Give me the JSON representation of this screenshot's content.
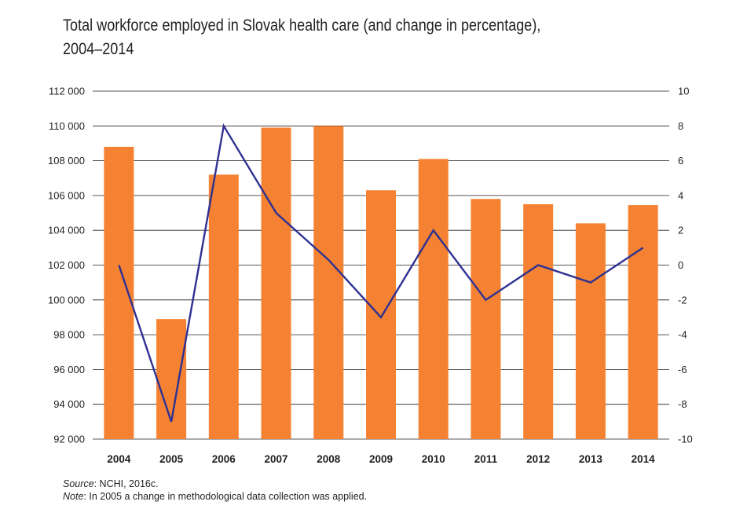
{
  "chart_data": {
    "type": "bar",
    "title_line1": "Total workforce employed in Slovak health care (and change in percentage),",
    "title_line2": "2004–2014",
    "categories": [
      "2004",
      "2005",
      "2006",
      "2007",
      "2008",
      "2009",
      "2010",
      "2011",
      "2012",
      "2013",
      "2014"
    ],
    "series": [
      {
        "type": "bar",
        "axis": "left",
        "color": "#f58232",
        "values": [
          108800,
          98900,
          107200,
          109900,
          110000,
          106300,
          108100,
          105800,
          105500,
          104400,
          105450
        ]
      },
      {
        "type": "line",
        "axis": "right",
        "color": "#2e3192",
        "values": [
          0,
          -9,
          8,
          3,
          0.3,
          -3,
          2,
          -2,
          0,
          -1,
          1
        ]
      }
    ],
    "y_left": {
      "min": 92000,
      "max": 112000,
      "step": 2000,
      "ticks": [
        "92 000",
        "94 000",
        "96 000",
        "98 000",
        "100 000",
        "102 000",
        "104 000",
        "106 000",
        "108 000",
        "110 000",
        "112 000"
      ]
    },
    "y_right": {
      "min": -10,
      "max": 10,
      "step": 2,
      "ticks": [
        "-10",
        "-8",
        "-6",
        "-4",
        "-2",
        "0",
        "2",
        "4",
        "6",
        "8",
        "10"
      ]
    },
    "grid": true
  },
  "notes": {
    "source_label": "Source",
    "source_text": ": NCHI, 2016c.",
    "note_label": "Note",
    "note_text": ": In 2005 a change in methodological data collection was applied."
  }
}
